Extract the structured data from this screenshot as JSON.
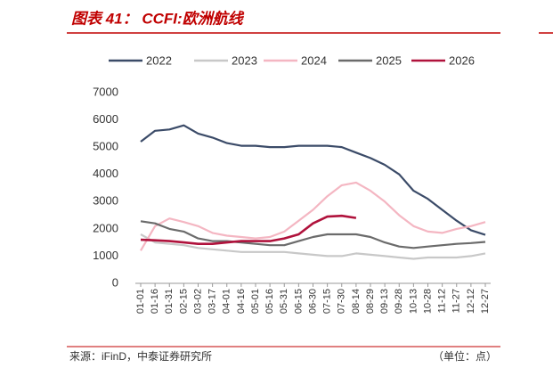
{
  "chart_data": {
    "type": "line",
    "title": "图表 41：  CCFI:欧洲航线",
    "source": "来源：iFinD，中泰证券研究所",
    "unit": "（单位：点）",
    "categories": [
      "01-01",
      "01-16",
      "01-31",
      "02-15",
      "03-02",
      "03-17",
      "04-01",
      "04-16",
      "05-01",
      "05-16",
      "05-31",
      "06-15",
      "06-30",
      "07-15",
      "07-30",
      "08-14",
      "08-29",
      "09-13",
      "09-28",
      "10-13",
      "10-28",
      "11-12",
      "11-27",
      "12-12",
      "12-27"
    ],
    "series": [
      {
        "name": "2022",
        "color": "#3b4b68",
        "values": [
          5200,
          5600,
          5650,
          5800,
          5500,
          5350,
          5150,
          5050,
          5050,
          5000,
          5000,
          5050,
          5050,
          5050,
          5000,
          4800,
          4600,
          4350,
          4000,
          3400,
          3100,
          2700,
          2300,
          1950,
          1780
        ]
      },
      {
        "name": "2023",
        "color": "#c8c8c8",
        "values": [
          1800,
          1500,
          1450,
          1400,
          1300,
          1250,
          1200,
          1150,
          1150,
          1150,
          1150,
          1100,
          1050,
          1000,
          1000,
          1100,
          1050,
          1000,
          950,
          900,
          950,
          950,
          950,
          1000,
          1100
        ]
      },
      {
        "name": "2024",
        "color": "#f4b6c2",
        "values": [
          1200,
          2100,
          2380,
          2250,
          2100,
          1850,
          1750,
          1700,
          1650,
          1700,
          1900,
          2300,
          2700,
          3200,
          3600,
          3700,
          3400,
          3000,
          2500,
          2100,
          1900,
          1850,
          2000,
          2100,
          2250
        ]
      },
      {
        "name": "2025",
        "color": "#6b6b6b",
        "values": [
          2280,
          2200,
          2000,
          1900,
          1650,
          1550,
          1550,
          1500,
          1450,
          1400,
          1400,
          1550,
          1700,
          1800,
          1800,
          1800,
          1700,
          1500,
          1350,
          1300,
          1350,
          1400,
          1450,
          1480,
          1520
        ]
      },
      {
        "name": "2026",
        "color": "#b0123c",
        "values": [
          1600,
          1580,
          1550,
          1500,
          1450,
          1450,
          1500,
          1550,
          1550,
          1550,
          1650,
          1800,
          2200,
          2450,
          2480,
          2400,
          null,
          null,
          null,
          null,
          null,
          null,
          null,
          null,
          null
        ]
      }
    ],
    "ylim": [
      0,
      7000
    ],
    "yticks": [
      0,
      1000,
      2000,
      3000,
      4000,
      5000,
      6000,
      7000
    ],
    "legend": "top"
  }
}
